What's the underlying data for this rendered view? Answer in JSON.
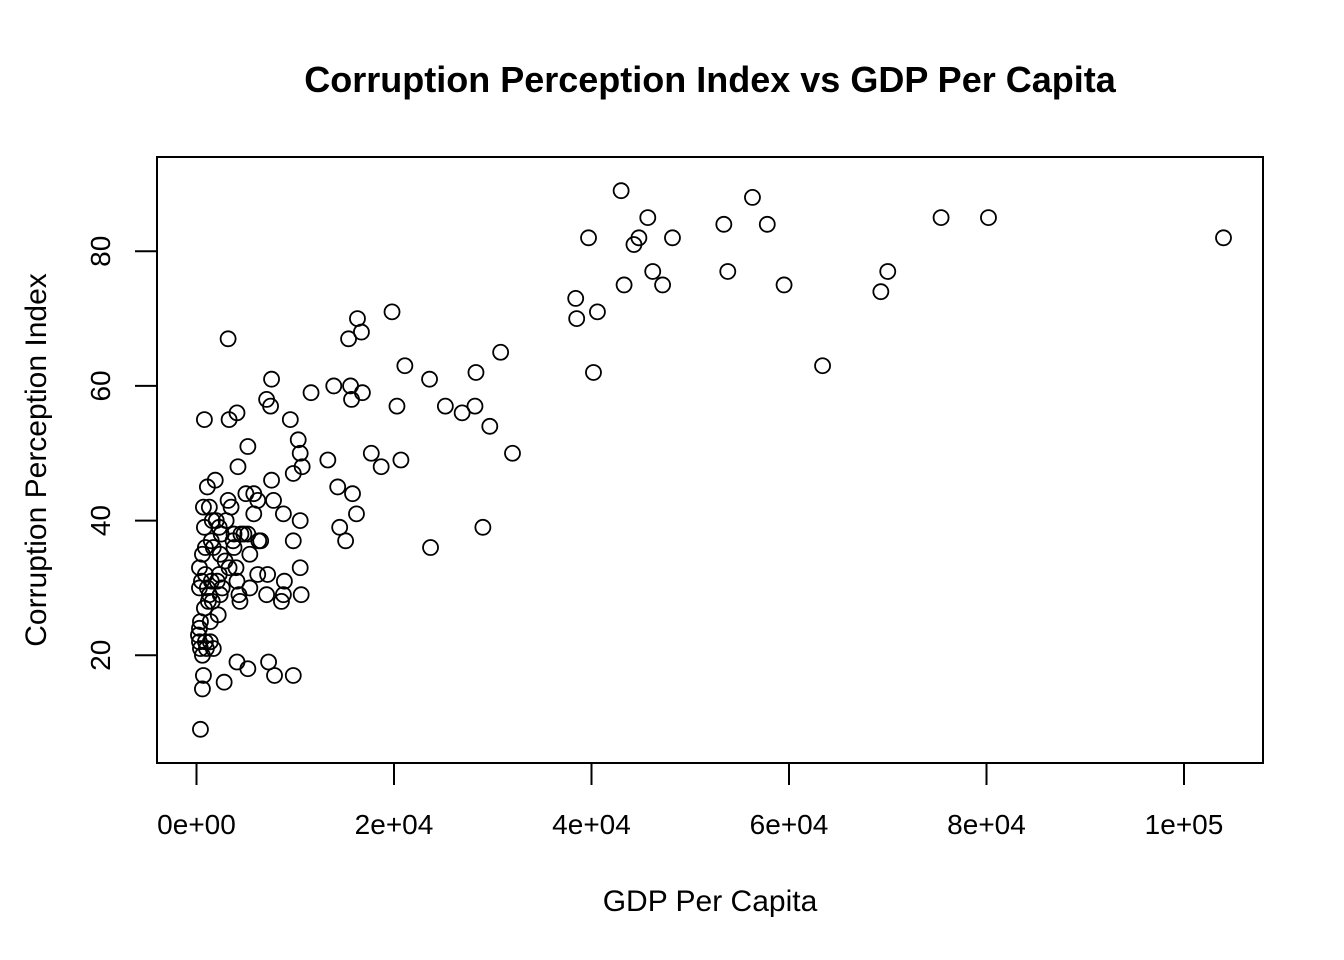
{
  "chart_data": {
    "type": "scatter",
    "title": "Corruption Perception Index vs GDP Per Capita",
    "xlabel": "GDP Per Capita",
    "ylabel": "Corruption Perception Index",
    "xlim": [
      -4000,
      108000
    ],
    "ylim": [
      4,
      94
    ],
    "xticks": [
      0,
      20000,
      40000,
      60000,
      80000,
      100000
    ],
    "xtick_labels": [
      "0e+00",
      "2e+04",
      "4e+04",
      "6e+04",
      "8e+04",
      "1e+05"
    ],
    "yticks": [
      20,
      40,
      60,
      80
    ],
    "ytick_labels": [
      "20",
      "40",
      "60",
      "80"
    ],
    "grid": false,
    "legend": "none",
    "marker": "open-circle",
    "color": "#000000",
    "points": [
      [
        43000,
        89
      ],
      [
        56300,
        88
      ],
      [
        75400,
        85
      ],
      [
        80200,
        85
      ],
      [
        45700,
        85
      ],
      [
        53400,
        84
      ],
      [
        57800,
        84
      ],
      [
        39700,
        82
      ],
      [
        44800,
        82
      ],
      [
        48200,
        82
      ],
      [
        104000,
        82
      ],
      [
        44300,
        81
      ],
      [
        70000,
        77
      ],
      [
        46200,
        77
      ],
      [
        53800,
        77
      ],
      [
        43300,
        75
      ],
      [
        47200,
        75
      ],
      [
        59500,
        75
      ],
      [
        69300,
        74
      ],
      [
        38400,
        73
      ],
      [
        19800,
        71
      ],
      [
        40600,
        71
      ],
      [
        16300,
        70
      ],
      [
        38500,
        70
      ],
      [
        16700,
        68
      ],
      [
        3200,
        67
      ],
      [
        15400,
        67
      ],
      [
        30800,
        65
      ],
      [
        21100,
        63
      ],
      [
        63400,
        63
      ],
      [
        28300,
        62
      ],
      [
        40200,
        62
      ],
      [
        7600,
        61
      ],
      [
        23600,
        61
      ],
      [
        13900,
        60
      ],
      [
        15600,
        60
      ],
      [
        11600,
        59
      ],
      [
        16800,
        59
      ],
      [
        7100,
        58
      ],
      [
        15700,
        58
      ],
      [
        7500,
        57
      ],
      [
        20300,
        57
      ],
      [
        25200,
        57
      ],
      [
        28200,
        57
      ],
      [
        4100,
        56
      ],
      [
        26900,
        56
      ],
      [
        800,
        55
      ],
      [
        3300,
        55
      ],
      [
        9500,
        55
      ],
      [
        29700,
        54
      ],
      [
        10300,
        52
      ],
      [
        5200,
        51
      ],
      [
        10500,
        50
      ],
      [
        17700,
        50
      ],
      [
        32000,
        50
      ],
      [
        13300,
        49
      ],
      [
        20700,
        49
      ],
      [
        4200,
        48
      ],
      [
        10700,
        48
      ],
      [
        18700,
        48
      ],
      [
        9800,
        47
      ],
      [
        1900,
        46
      ],
      [
        7600,
        46
      ],
      [
        1100,
        45
      ],
      [
        14300,
        45
      ],
      [
        5000,
        44
      ],
      [
        5800,
        44
      ],
      [
        15800,
        44
      ],
      [
        3200,
        43
      ],
      [
        6200,
        43
      ],
      [
        7800,
        43
      ],
      [
        700,
        42
      ],
      [
        1300,
        42
      ],
      [
        3500,
        42
      ],
      [
        5800,
        41
      ],
      [
        8800,
        41
      ],
      [
        16200,
        41
      ],
      [
        1600,
        40
      ],
      [
        2000,
        40
      ],
      [
        3000,
        40
      ],
      [
        10500,
        40
      ],
      [
        800,
        39
      ],
      [
        2300,
        39
      ],
      [
        14500,
        39
      ],
      [
        29000,
        39
      ],
      [
        2500,
        38
      ],
      [
        3800,
        38
      ],
      [
        4500,
        38
      ],
      [
        4800,
        38
      ],
      [
        5200,
        38
      ],
      [
        1500,
        37
      ],
      [
        3700,
        37
      ],
      [
        6300,
        37
      ],
      [
        6500,
        37
      ],
      [
        9800,
        37
      ],
      [
        15100,
        37
      ],
      [
        900,
        36
      ],
      [
        1700,
        36
      ],
      [
        3800,
        36
      ],
      [
        23700,
        36
      ],
      [
        600,
        35
      ],
      [
        2400,
        35
      ],
      [
        5400,
        35
      ],
      [
        2900,
        34
      ],
      [
        3300,
        33
      ],
      [
        4000,
        33
      ],
      [
        10500,
        33
      ],
      [
        300,
        33
      ],
      [
        900,
        32
      ],
      [
        2300,
        32
      ],
      [
        6200,
        32
      ],
      [
        7200,
        32
      ],
      [
        500,
        31
      ],
      [
        1500,
        31
      ],
      [
        2100,
        31
      ],
      [
        4100,
        31
      ],
      [
        8900,
        31
      ],
      [
        300,
        30
      ],
      [
        1100,
        30
      ],
      [
        2600,
        30
      ],
      [
        5400,
        30
      ],
      [
        1300,
        29
      ],
      [
        2400,
        29
      ],
      [
        4300,
        29
      ],
      [
        7100,
        29
      ],
      [
        8800,
        29
      ],
      [
        10600,
        29
      ],
      [
        1200,
        28
      ],
      [
        1600,
        28
      ],
      [
        4400,
        28
      ],
      [
        8600,
        28
      ],
      [
        800,
        27
      ],
      [
        2200,
        26
      ],
      [
        400,
        25
      ],
      [
        1400,
        25
      ],
      [
        300,
        24
      ],
      [
        200,
        23
      ],
      [
        300,
        22
      ],
      [
        900,
        22
      ],
      [
        1400,
        22
      ],
      [
        400,
        21
      ],
      [
        1000,
        21
      ],
      [
        1700,
        21
      ],
      [
        600,
        20
      ],
      [
        4100,
        19
      ],
      [
        7300,
        19
      ],
      [
        5200,
        18
      ],
      [
        700,
        17
      ],
      [
        7900,
        17
      ],
      [
        9800,
        17
      ],
      [
        2800,
        16
      ],
      [
        600,
        15
      ],
      [
        400,
        9
      ]
    ]
  }
}
